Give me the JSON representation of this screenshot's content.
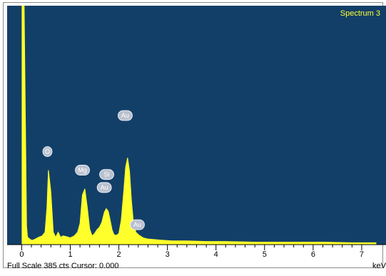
{
  "chart_data": {
    "type": "area",
    "title": "Spectrum 3",
    "xlabel": "keV",
    "ylabel": "",
    "xlim": [
      -0.3,
      7.5
    ],
    "ylim": [
      0,
      385
    ],
    "x_ticks": [
      0,
      1,
      2,
      3,
      4,
      5,
      6,
      7
    ],
    "status": "Full Scale 385 cts Cursor: 0.000",
    "colors": {
      "plot_background": "#123f68",
      "spectrum": "#ffff2b",
      "label_badge": "#b9c1cf"
    },
    "series": [
      {
        "x": [
          0.0,
          0.05,
          0.1,
          0.12,
          0.18,
          0.22,
          0.28,
          0.35,
          0.42,
          0.48,
          0.52,
          0.55,
          0.6,
          0.65,
          0.7,
          0.75,
          0.8,
          0.85,
          0.92,
          1.0,
          1.08,
          1.15,
          1.2,
          1.25,
          1.3,
          1.35,
          1.4,
          1.45,
          1.5,
          1.55,
          1.6,
          1.65,
          1.7,
          1.74,
          1.78,
          1.82,
          1.86,
          1.9,
          1.95,
          2.0,
          2.05,
          2.1,
          2.14,
          2.18,
          2.22,
          2.26,
          2.3,
          2.35,
          2.42,
          2.5,
          2.6,
          2.75,
          2.9,
          3.1,
          3.4,
          3.8,
          4.2,
          4.8,
          5.5,
          6.2,
          6.8,
          7.3
        ],
        "y": [
          385,
          385,
          30,
          12,
          8,
          7,
          9,
          12,
          14,
          20,
          60,
          120,
          85,
          20,
          12,
          20,
          12,
          14,
          13,
          11,
          14,
          20,
          34,
          80,
          90,
          60,
          25,
          14,
          18,
          24,
          28,
          36,
          52,
          58,
          54,
          40,
          24,
          16,
          15,
          18,
          40,
          85,
          125,
          140,
          118,
          70,
          35,
          20,
          15,
          11,
          9,
          8,
          7,
          6,
          6,
          5,
          5,
          4,
          4,
          4,
          3,
          3
        ]
      }
    ],
    "peak_labels": [
      {
        "text": "O",
        "x": 0.53,
        "y": 150
      },
      {
        "text": "Mg",
        "x": 1.25,
        "y": 120
      },
      {
        "text": "Si",
        "x": 1.75,
        "y": 113
      },
      {
        "text": "Au",
        "x": 1.7,
        "y": 92
      },
      {
        "text": "Au",
        "x": 2.13,
        "y": 208
      },
      {
        "text": "Au",
        "x": 2.38,
        "y": 32
      }
    ]
  }
}
